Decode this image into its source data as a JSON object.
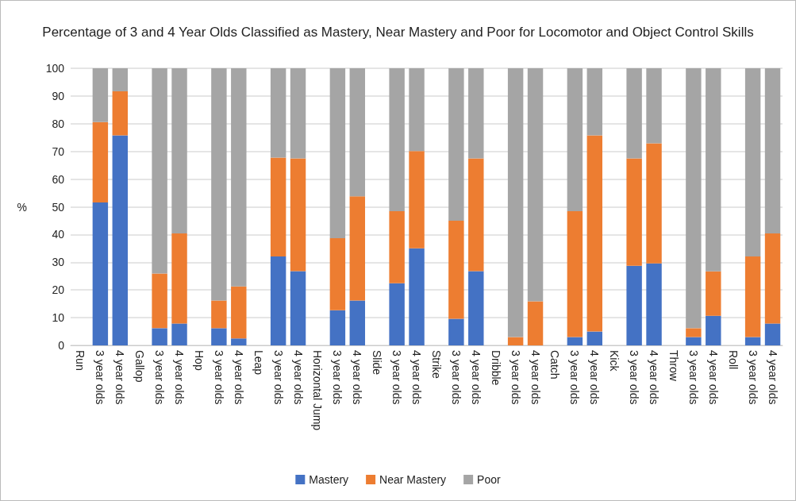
{
  "chart_data": {
    "type": "bar",
    "stacked": true,
    "title": "Percentage of 3 and 4 Year Olds Classified as Mastery, Near Mastery and Poor for Locomotor and Object Control Skills",
    "ylabel": "%",
    "categories": [
      null,
      "3 year olds",
      "4 year olds",
      null,
      "3 year olds",
      "4 year olds",
      null,
      "3 year olds",
      "4 year olds",
      null,
      "3 year olds",
      "4 year olds",
      null,
      "3 year olds",
      "4 year olds",
      null,
      "3 year olds",
      "4 year olds",
      null,
      "3 year olds",
      "4 year olds",
      null,
      "3 year olds",
      "4 year olds",
      null,
      "3 year olds",
      "4 year olds",
      null,
      "3 year olds",
      "4 year olds",
      null,
      "3 year olds",
      "4 year olds",
      null,
      "3 year olds",
      "4 year olds"
    ],
    "annotations": [
      "Run",
      "Gallop",
      "Hop",
      "Leap",
      "Horizontal Jump",
      "Slide",
      "Strike",
      "Dribble",
      "Catch",
      "Kick",
      "Throw",
      "Roll"
    ],
    "series": [
      {
        "name": "Mastery",
        "color": "#4472c4",
        "values": [
          null,
          51.6,
          75.8,
          null,
          6.2,
          7.9,
          null,
          6.2,
          2.5,
          null,
          32.1,
          26.8,
          null,
          12.7,
          16.2,
          null,
          22.4,
          35.0,
          null,
          9.6,
          26.8,
          null,
          0,
          0,
          null,
          3.0,
          5.0,
          null,
          28.7,
          29.6,
          null,
          3.0,
          10.7,
          null,
          3.0,
          7.9
        ]
      },
      {
        "name": "Near Mastery",
        "color": "#ed7d31",
        "values": [
          null,
          29.0,
          15.9,
          null,
          19.7,
          32.5,
          null,
          10.0,
          18.8,
          null,
          35.7,
          40.7,
          null,
          26.0,
          37.6,
          null,
          26.0,
          35.1,
          null,
          35.4,
          40.7,
          null,
          3.0,
          15.9,
          null,
          45.4,
          70.8,
          null,
          38.8,
          43.3,
          null,
          3.2,
          16.0,
          null,
          29.1,
          32.5
        ]
      },
      {
        "name": "Poor",
        "color": "#a5a5a5",
        "values": [
          null,
          19.4,
          8.3,
          null,
          74.1,
          59.6,
          null,
          83.8,
          78.7,
          null,
          32.2,
          32.5,
          null,
          61.3,
          46.2,
          null,
          51.6,
          29.9,
          null,
          55.0,
          32.5,
          null,
          97.0,
          84.1,
          null,
          51.6,
          24.2,
          null,
          32.5,
          27.1,
          null,
          93.8,
          73.3,
          null,
          67.9,
          59.6
        ]
      }
    ],
    "ylim": [
      0,
      100
    ],
    "yticks": [
      0,
      10,
      20,
      30,
      40,
      50,
      60,
      70,
      80,
      90,
      100
    ],
    "grid": "y",
    "legend": "bottom"
  }
}
